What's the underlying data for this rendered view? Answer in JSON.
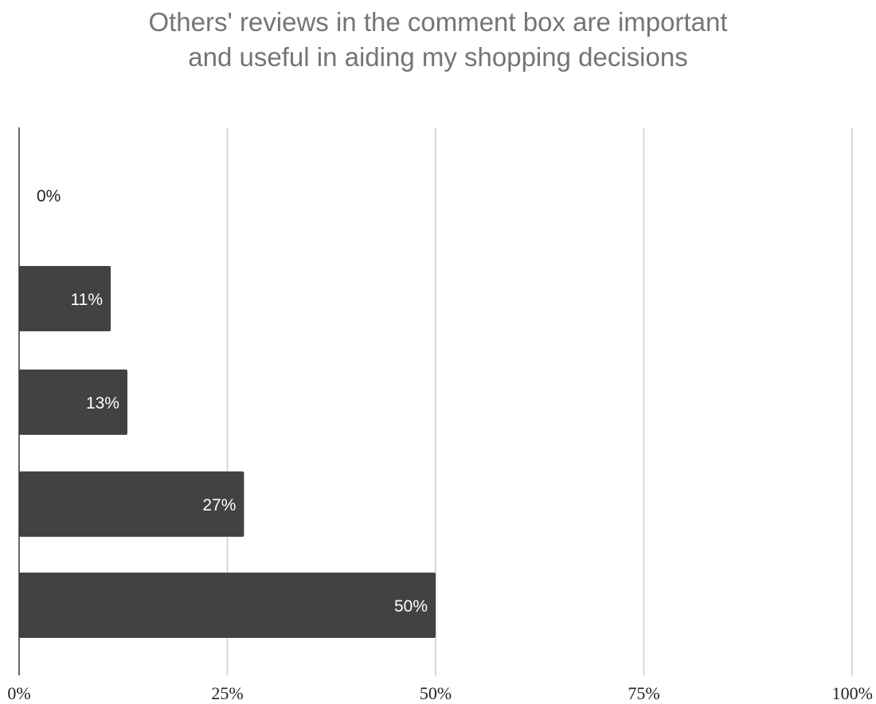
{
  "chart_data": {
    "type": "bar",
    "orientation": "horizontal",
    "title_lines": [
      "Others' reviews in the comment box are important",
      "and useful in aiding my shopping decisions"
    ],
    "categories": [
      "",
      "",
      "",
      "",
      ""
    ],
    "values": [
      0,
      11,
      13,
      27,
      50
    ],
    "data_labels": [
      "0%",
      "11%",
      "13%",
      "27%",
      "50%"
    ],
    "xlim": [
      0,
      100
    ],
    "x_ticks": [
      0,
      25,
      50,
      75,
      100
    ],
    "x_tick_labels": [
      "0%",
      "25%",
      "50%",
      "75%",
      "100%"
    ],
    "grid": true,
    "legend": "none",
    "colors": {
      "bar": "#424242",
      "grid": "#cccccc",
      "axis": "#333333",
      "title": "#757575",
      "label_inside": "#ffffff",
      "label_outside": "#222222"
    }
  }
}
